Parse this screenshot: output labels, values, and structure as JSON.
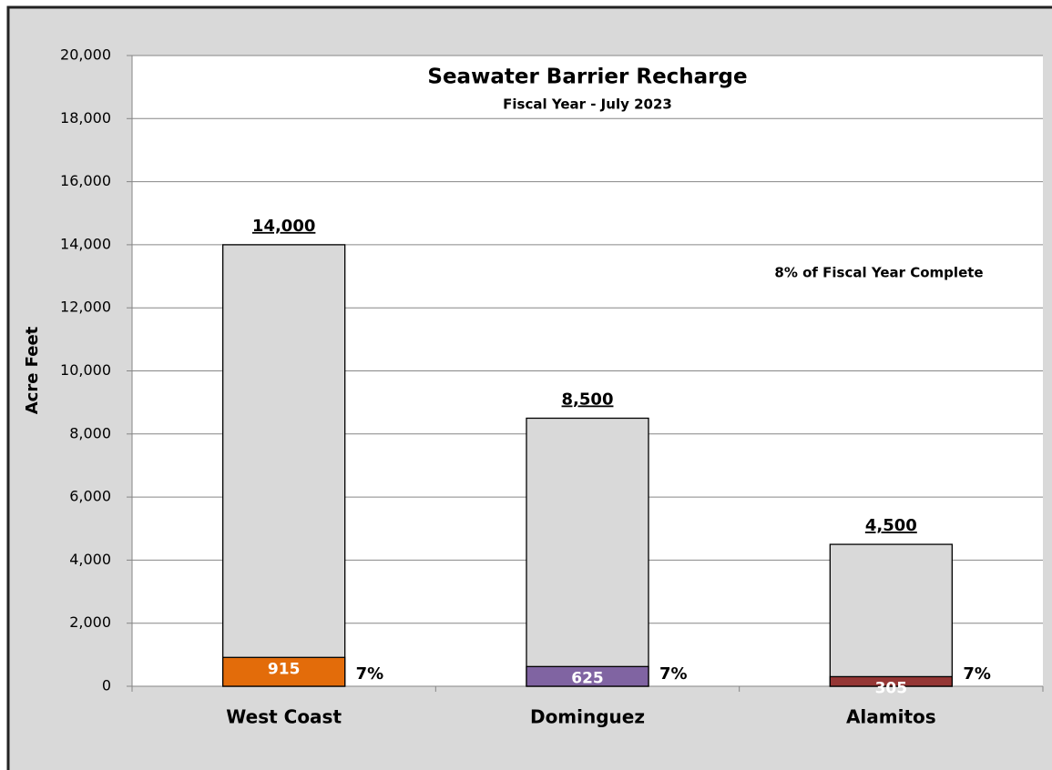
{
  "chart_data": {
    "type": "bar",
    "title": "Seawater Barrier Recharge",
    "subtitle": "Fiscal Year - July 2023",
    "ylabel": "Acre Feet",
    "annotation": "8% of Fiscal Year Complete",
    "categories": [
      "West Coast",
      "Dominguez",
      "Alamitos"
    ],
    "series": [
      {
        "values": [
          14000,
          8500,
          4500
        ],
        "value_labels": [
          "14,000",
          "8,500",
          "4,500"
        ],
        "color": "#d9d9d9"
      },
      {
        "values": [
          915,
          625,
          305
        ],
        "colors": [
          "#e36c0a",
          "#8064a2",
          "#953735"
        ]
      }
    ],
    "percent": {
      "values": [
        7,
        7,
        7
      ],
      "value_labels": [
        "7%",
        "7%",
        "7%"
      ]
    },
    "ylim": [
      0,
      20000
    ],
    "yticks": [
      0,
      {
        "value": 2000,
        "label": "2,000"
      },
      {
        "value": 4000,
        "label": "4,000"
      },
      {
        "value": 6000,
        "label": "6,000"
      },
      {
        "value": 8000,
        "label": "8,000"
      },
      {
        "value": 10000,
        "label": "10,000"
      },
      {
        "value": 12000,
        "label": "12,000"
      },
      {
        "value": 14000,
        "label": "14,000"
      },
      {
        "value": 16000,
        "label": "16,000"
      },
      {
        "value": 18000,
        "label": "18,000"
      },
      {
        "value": 20000,
        "label": "20,000"
      }
    ],
    "grid": true
  }
}
